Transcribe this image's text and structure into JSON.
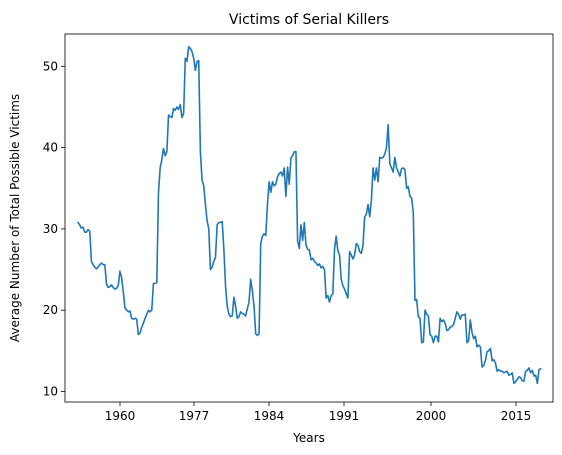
{
  "chart_data": {
    "type": "line",
    "title": "Victims of Serial Killers",
    "xlabel": "Years",
    "ylabel": "Average Number of Total Possible Victims",
    "grid": false,
    "legend": "none",
    "x_tick_labels": [
      "1960",
      "1977",
      "1984",
      "1991",
      "2000",
      "2015"
    ],
    "y_ticks": [
      10,
      20,
      30,
      40,
      50
    ],
    "series": [
      {
        "color": "#1f77b4",
        "values": [
          30.8,
          30.5,
          30.1,
          30.2,
          29.6,
          29.6,
          29.9,
          29.7,
          26.0,
          25.6,
          25.3,
          25.1,
          25.3,
          25.6,
          25.8,
          25.6,
          25.6,
          23.2,
          22.8,
          22.9,
          23.1,
          22.8,
          22.6,
          22.7,
          23.0,
          24.8,
          24.0,
          22.3,
          20.3,
          20.0,
          19.8,
          19.9,
          19.0,
          18.9,
          19.0,
          18.9,
          17.0,
          17.2,
          17.9,
          18.4,
          19.0,
          19.5,
          20.0,
          19.8,
          20.0,
          23.3,
          23.3,
          23.4,
          34.5,
          37.5,
          38.5,
          39.9,
          39.0,
          39.5,
          44.0,
          43.8,
          43.7,
          44.8,
          44.6,
          45.0,
          44.7,
          45.3,
          43.7,
          44.2,
          51.0,
          50.6,
          52.4,
          52.2,
          51.8,
          51.0,
          49.5,
          50.6,
          50.7,
          39.5,
          36.0,
          35.3,
          33.0,
          31.0,
          30.0,
          25.0,
          25.3,
          26.0,
          26.5,
          30.5,
          30.8,
          30.8,
          30.9,
          27.5,
          23.0,
          20.5,
          19.5,
          19.2,
          19.3,
          21.6,
          20.5,
          19.0,
          19.2,
          19.8,
          19.6,
          19.5,
          19.3,
          20.2,
          21.0,
          23.8,
          22.4,
          20.5,
          17.1,
          16.9,
          17.1,
          28.2,
          29.1,
          29.4,
          29.2,
          33.0,
          35.8,
          34.5,
          35.8,
          35.3,
          35.5,
          36.4,
          36.8,
          37.0,
          36.5,
          37.5,
          34.0,
          37.6,
          35.5,
          38.7,
          39.0,
          39.5,
          39.5,
          28.5,
          27.6,
          30.5,
          28.6,
          30.8,
          28.0,
          27.5,
          27.4,
          26.2,
          26.4,
          26.0,
          25.8,
          25.5,
          25.7,
          25.2,
          25.4,
          25.0,
          21.5,
          21.8,
          21.0,
          21.8,
          22.0,
          27.5,
          29.1,
          27.3,
          26.8,
          23.8,
          23.0,
          22.6,
          22.0,
          21.5,
          27.2,
          26.8,
          26.3,
          26.8,
          28.2,
          28.0,
          27.2,
          27.0,
          28.0,
          31.5,
          31.8,
          33.0,
          31.5,
          33.5,
          37.5,
          36.0,
          37.5,
          35.8,
          38.8,
          38.7,
          38.8,
          39.2,
          40.0,
          42.8,
          38.0,
          37.5,
          37.0,
          38.8,
          37.5,
          37.0,
          36.5,
          37.4,
          37.5,
          37.3,
          35.0,
          35.2,
          34.0,
          33.8,
          32.0,
          21.2,
          21.3,
          19.2,
          19.0,
          16.0,
          16.1,
          20.0,
          19.5,
          19.3,
          17.0,
          16.8,
          16.0,
          16.8,
          16.8,
          16.1,
          19.0,
          18.6,
          18.8,
          18.4,
          17.5,
          17.6,
          17.9,
          18.0,
          18.2,
          19.0,
          19.8,
          19.5,
          18.9,
          19.4,
          19.4,
          19.5,
          16.0,
          16.2,
          18.8,
          17.3,
          16.5,
          16.8,
          15.5,
          15.7,
          15.5,
          13.0,
          13.2,
          13.8,
          14.9,
          15.0,
          15.3,
          13.8,
          13.9,
          13.5,
          12.5,
          12.7,
          12.5,
          12.5,
          12.3,
          12.4,
          12.5,
          12.0,
          12.1,
          12.3,
          11.0,
          11.2,
          11.5,
          11.8,
          11.7,
          11.3,
          11.3,
          12.5,
          12.6,
          12.9,
          12.3,
          12.6,
          11.9,
          12.0,
          11.0,
          12.7,
          12.8
        ]
      }
    ]
  }
}
